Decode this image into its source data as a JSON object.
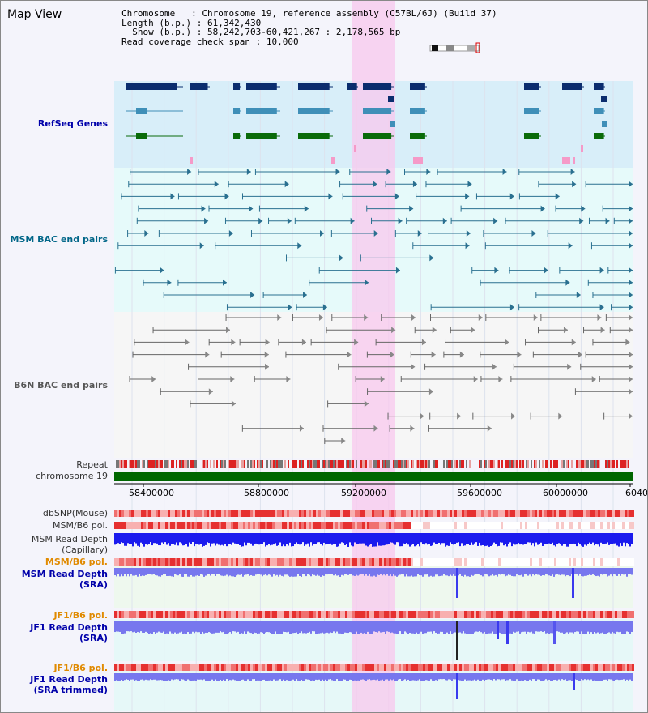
{
  "title": "Map View",
  "info": {
    "chromosome_label": "Chromosome",
    "chromosome_value": "Chromosome 19, reference assembly (C57BL/6J) (Build 37)",
    "length_label": "Length (b.p.)",
    "length_value": "61,342,430",
    "show_label": "Show (b.p.)",
    "show_value": "58,242,703-60,421,267 : 2,178,565 bp",
    "coverage_label": "Read coverage check span",
    "coverage_value": "10,000"
  },
  "tracks": {
    "refseq": "RefSeq Genes",
    "msm_bac": "MSM BAC end pairs",
    "b6n_bac": "B6N BAC end pairs",
    "repeat": "Repeat",
    "chromosome": "chromosome 19",
    "dbsnp": "dbSNP(Mouse)",
    "msm_b6_pol_1": "MSM/B6 pol.",
    "msm_read_depth_cap": "MSM Read Depth\n(Capillary)",
    "msm_b6_pol_2": "MSM/B6 pol.",
    "msm_read_depth_sra": "MSM Read Depth\n(SRA)",
    "jf1_b6_pol_1": "JF1/B6 pol.",
    "jf1_read_depth_sra": "JF1 Read Depth\n(SRA)",
    "jf1_b6_pol_2": "JF1/B6 pol.",
    "jf1_read_depth_trim": "JF1 Read Depth\n(SRA trimmed)"
  },
  "axis": {
    "ticks": [
      "58400000",
      "58800000",
      "59200000",
      "59600000",
      "60000000",
      "6040"
    ]
  },
  "colors": {
    "refseq_bg": "#d8eef9",
    "bac_bg": "#e6fafa",
    "highlight": "#f8c8ee",
    "gene_dark": "#0a2d6e",
    "gene_mid": "#3f8fb8",
    "gene_green": "#0a6b0a",
    "bac_line": "#2a7090",
    "b6n_line": "#666666",
    "chrom_green": "#006600",
    "snp_red": "#e02020",
    "depth_blue": "#1a1aee",
    "depth_light": "#7777ee"
  }
}
